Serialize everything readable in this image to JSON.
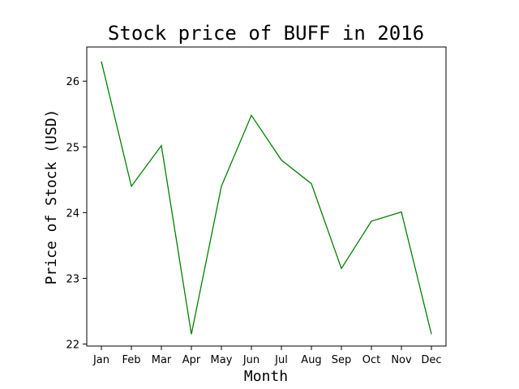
{
  "chart_data": {
    "type": "line",
    "title": "Stock price of BUFF in 2016",
    "xlabel": "Month",
    "ylabel": "Price of Stock (USD)",
    "categories": [
      "Jan",
      "Feb",
      "Mar",
      "Apr",
      "May",
      "Jun",
      "Jul",
      "Aug",
      "Sep",
      "Oct",
      "Nov",
      "Dec"
    ],
    "series": [
      {
        "color": "#008000",
        "values": [
          26.3,
          24.4,
          25.02,
          22.15,
          24.4,
          25.48,
          24.8,
          24.44,
          23.15,
          23.87,
          24.01,
          22.15
        ]
      }
    ],
    "ylim": [
      21.97,
      26.52
    ],
    "yticks": [
      22,
      23,
      24,
      25,
      26
    ],
    "grid": false,
    "legend": false
  }
}
